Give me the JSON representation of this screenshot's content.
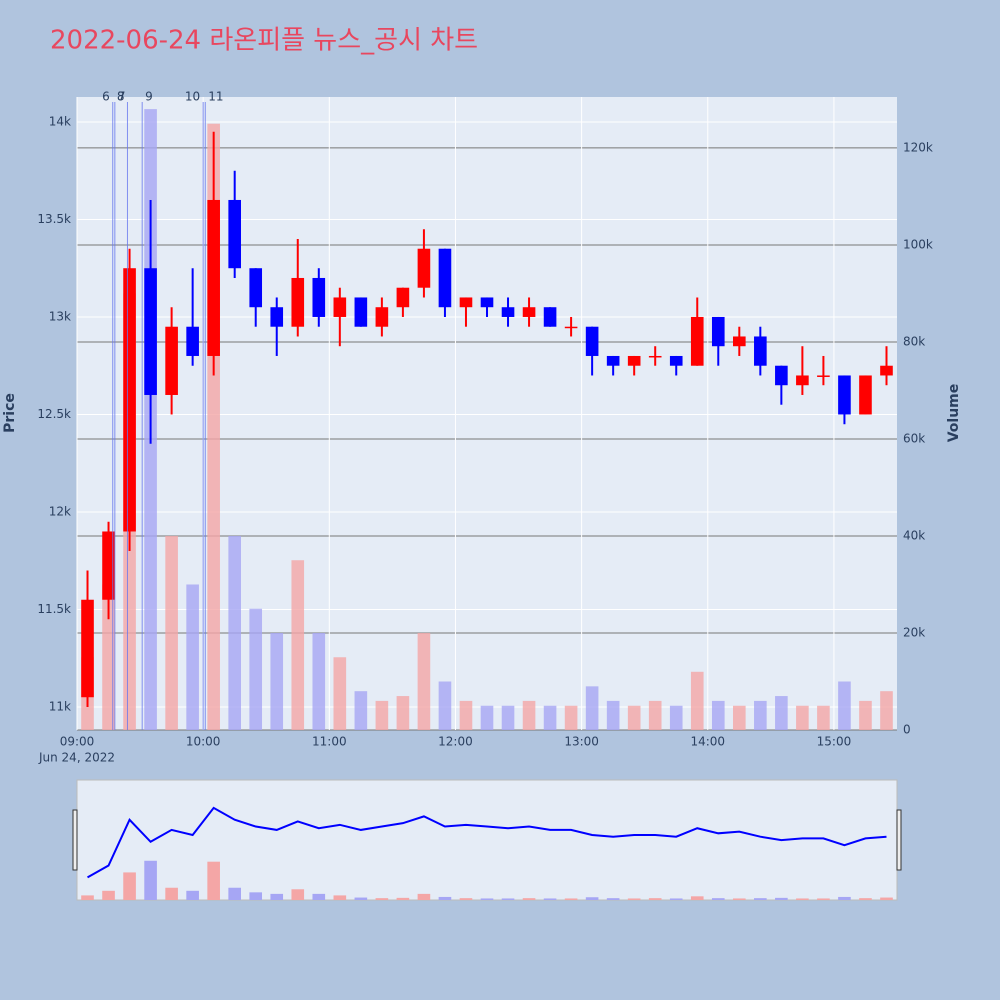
{
  "chart_data": {
    "type": "candlestick",
    "title": "2022-06-24 라온피플 뉴스_공시 차트",
    "x_axis_date": "Jun 24, 2022",
    "y_label": "Price",
    "y2_label": "Volume",
    "up_color": "#ff0000",
    "down_color": "#0000ff",
    "volume_up_color": "#f4a6a6",
    "volume_down_color": "#a6a6f4",
    "x": [
      "09:00",
      "09:10",
      "09:20",
      "09:30",
      "09:40",
      "09:50",
      "10:00",
      "10:10",
      "10:20",
      "10:30",
      "10:40",
      "10:50",
      "11:00",
      "11:10",
      "11:20",
      "11:30",
      "11:40",
      "11:50",
      "12:00",
      "12:10",
      "12:20",
      "12:30",
      "12:40",
      "12:50",
      "13:00",
      "13:10",
      "13:20",
      "13:30",
      "13:40",
      "13:50",
      "14:00",
      "14:10",
      "14:20",
      "14:30",
      "14:40",
      "14:50",
      "15:00",
      "15:10",
      "15:20"
    ],
    "open": [
      11050,
      11550,
      11900,
      13250,
      12600,
      12950,
      12800,
      13600,
      13250,
      13050,
      12950,
      13200,
      13000,
      13100,
      12950,
      13050,
      13150,
      13350,
      13050,
      13100,
      13050,
      13000,
      13050,
      12950,
      12950,
      12800,
      12750,
      12800,
      12800,
      12750,
      13000,
      12850,
      12900,
      12750,
      12650,
      12700,
      12700,
      12500,
      12700
    ],
    "high": [
      11700,
      11950,
      13350,
      13600,
      13050,
      13250,
      13950,
      13750,
      13250,
      13100,
      13400,
      13250,
      13150,
      13100,
      13100,
      13150,
      13450,
      13350,
      13100,
      13100,
      13100,
      13100,
      13050,
      13000,
      12950,
      12800,
      12800,
      12850,
      12800,
      13100,
      13000,
      12950,
      12950,
      12750,
      12850,
      12800,
      12700,
      12700,
      12850
    ],
    "low": [
      11000,
      11450,
      11800,
      12350,
      12500,
      12750,
      12700,
      13200,
      12950,
      12800,
      12900,
      12950,
      12850,
      12950,
      12900,
      13000,
      13100,
      13000,
      12950,
      13000,
      12950,
      12950,
      12950,
      12900,
      12700,
      12700,
      12700,
      12750,
      12700,
      12750,
      12750,
      12800,
      12700,
      12550,
      12600,
      12650,
      12450,
      12500,
      12650
    ],
    "close": [
      11550,
      11900,
      13250,
      12600,
      12950,
      12800,
      13600,
      13250,
      13050,
      12950,
      13200,
      13000,
      13100,
      12950,
      13050,
      13150,
      13350,
      13050,
      13100,
      13050,
      13000,
      13050,
      12950,
      12950,
      12800,
      12750,
      12800,
      12800,
      12750,
      13000,
      12850,
      12900,
      12750,
      12650,
      12700,
      12700,
      12500,
      12700,
      12750
    ],
    "volume": [
      15000,
      30000,
      90000,
      128000,
      40000,
      30000,
      125000,
      40000,
      25000,
      20000,
      35000,
      20000,
      15000,
      8000,
      6000,
      7000,
      20000,
      10000,
      6000,
      5000,
      5000,
      6000,
      5000,
      5000,
      9000,
      6000,
      5000,
      6000,
      5000,
      12000,
      6000,
      5000,
      6000,
      7000,
      5000,
      5000,
      10000,
      6000,
      8000
    ],
    "xlim": [
      "09:00",
      "15:30"
    ],
    "xticks": [
      "09:00",
      "10:00",
      "11:00",
      "12:00",
      "13:00",
      "14:00",
      "15:00"
    ],
    "ylim": [
      10882,
      14128
    ],
    "yticks": [
      {
        "value": 11000,
        "label": "11k"
      },
      {
        "value": 11500,
        "label": "11.5k"
      },
      {
        "value": 12000,
        "label": "12k"
      },
      {
        "value": 12500,
        "label": "12.5k"
      },
      {
        "value": 13000,
        "label": "13k"
      },
      {
        "value": 13500,
        "label": "13.5k"
      },
      {
        "value": 14000,
        "label": "14k"
      }
    ],
    "y2lim": [
      0,
      130500
    ],
    "y2ticks": [
      0,
      {
        "value": 20000,
        "label": "20k"
      },
      {
        "value": 40000,
        "label": "40k"
      },
      {
        "value": 60000,
        "label": "60k"
      },
      {
        "value": 80000,
        "label": "80k"
      },
      {
        "value": 100000,
        "label": "100k"
      },
      {
        "value": 120000,
        "label": "120k"
      }
    ],
    "annotations": [
      {
        "label": "6",
        "x": "09:17"
      },
      {
        "label": "7",
        "x": "09:18"
      },
      {
        "label": "8",
        "x": "09:24"
      },
      {
        "label": "9",
        "x": "09:31"
      },
      {
        "label": "10",
        "x": "10:00"
      },
      {
        "label": "11",
        "x": "10:01"
      }
    ]
  }
}
